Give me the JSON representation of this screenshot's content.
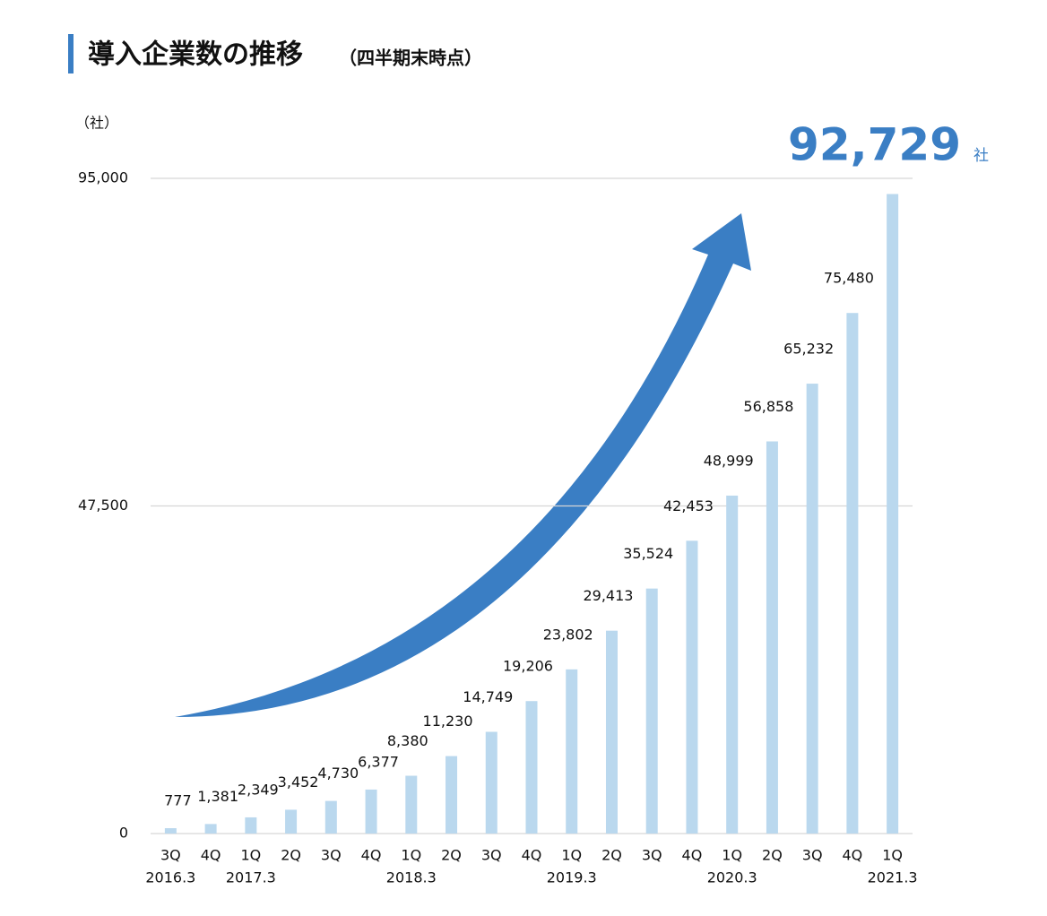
{
  "chart_data": {
    "type": "bar",
    "title": "導入企業数の推移",
    "subtitle": "（四半期末時点）",
    "y_axis_label": "（社）",
    "highlight_unit": "社",
    "categories": [
      "3Q",
      "4Q",
      "1Q",
      "2Q",
      "3Q",
      "4Q",
      "1Q",
      "2Q",
      "3Q",
      "4Q",
      "1Q",
      "2Q",
      "3Q",
      "4Q",
      "1Q",
      "2Q",
      "3Q",
      "4Q",
      "1Q"
    ],
    "period_labels": [
      "2016.3",
      null,
      "2017.3",
      null,
      null,
      null,
      "2018.3",
      null,
      null,
      null,
      "2019.3",
      null,
      null,
      null,
      "2020.3",
      null,
      null,
      null,
      "2021.3"
    ],
    "values": [
      777,
      1381,
      2349,
      3452,
      4730,
      6377,
      8380,
      11230,
      14749,
      19206,
      23802,
      29413,
      35524,
      42453,
      48999,
      56858,
      65232,
      75480,
      92729
    ],
    "value_labels": [
      "777",
      "1,381",
      "2,349",
      "3,452",
      "4,730",
      "6,377",
      "8,380",
      "11,230",
      "14,749",
      "19,206",
      "23,802",
      "29,413",
      "35,524",
      "42,453",
      "48,999",
      "56,858",
      "65,232",
      "75,480",
      "92,729"
    ],
    "color": "#bad8ee",
    "highlight_color": "#3a7ec4",
    "ylim": [
      0,
      95000
    ],
    "yticks": [
      0,
      {
        "value": 47500,
        "label": "47,500"
      },
      {
        "value": 95000,
        "label": "95,000"
      }
    ],
    "grid": true
  }
}
